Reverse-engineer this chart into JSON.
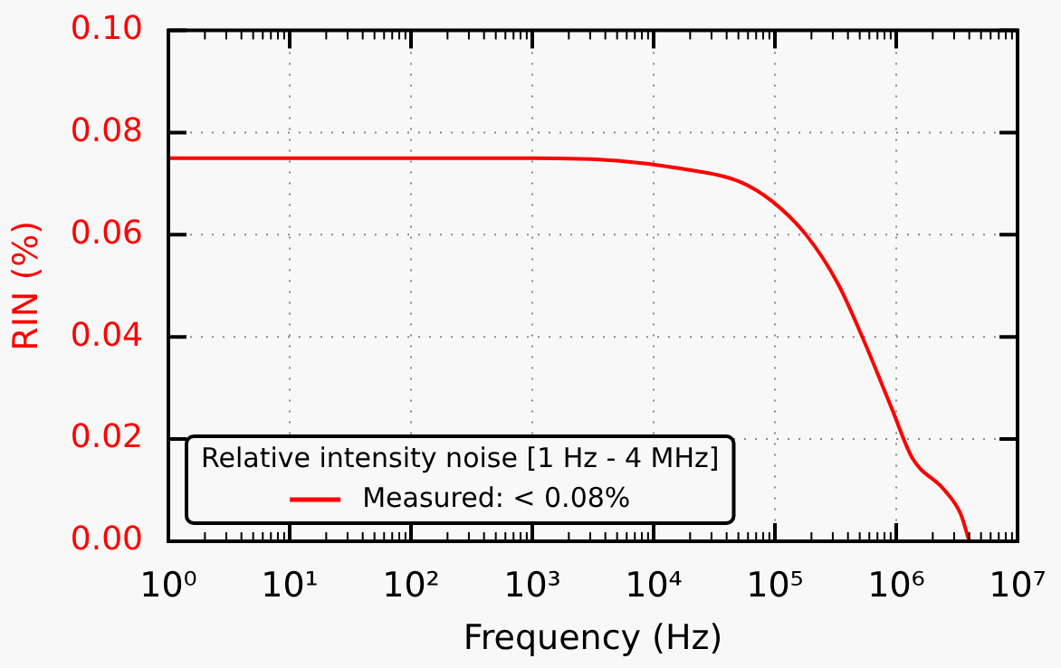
{
  "chart_data": {
    "type": "line",
    "xlabel": "Frequency (Hz)",
    "ylabel": "RIN (%)",
    "legend_title": "Relative intensity noise [1 Hz - 4 MHz]",
    "series": [
      {
        "name": "Measured: < 0.08%",
        "color": "#ff0000",
        "x": [
          1,
          10,
          100,
          1000,
          5000,
          17400,
          50000,
          95500,
          186000,
          331000,
          525000,
          912000,
          1350000,
          2500000,
          3390000,
          4000000
        ],
        "values": [
          0.075,
          0.075,
          0.075,
          0.075,
          0.0745,
          0.0729,
          0.0705,
          0.0665,
          0.0596,
          0.0504,
          0.04,
          0.0262,
          0.0164,
          0.01,
          0.0054,
          0
        ]
      }
    ],
    "log": "x",
    "xlim": [
      1,
      10000000
    ],
    "ylim": [
      0,
      0.1
    ],
    "xticks": [
      {
        "value": 1,
        "label": "10⁰"
      },
      {
        "value": 10,
        "label": "10¹"
      },
      {
        "value": 100,
        "label": "10²"
      },
      {
        "value": 1000,
        "label": "10³"
      },
      {
        "value": 10000,
        "label": "10⁴"
      },
      {
        "value": 100000,
        "label": "10⁵"
      },
      {
        "value": 1000000,
        "label": "10⁶"
      },
      {
        "value": 10000000,
        "label": "10⁷"
      }
    ],
    "yticks": [
      {
        "value": 0,
        "label": "0.00"
      },
      {
        "value": 0.02,
        "label": "0.02"
      },
      {
        "value": 0.04,
        "label": "0.04"
      },
      {
        "value": 0.06,
        "label": "0.06"
      },
      {
        "value": 0.08,
        "label": "0.08"
      },
      {
        "value": 0.1,
        "label": "0.10"
      }
    ],
    "grid": true,
    "legend": "bottom left",
    "marker": "none",
    "line_style": "solid"
  }
}
